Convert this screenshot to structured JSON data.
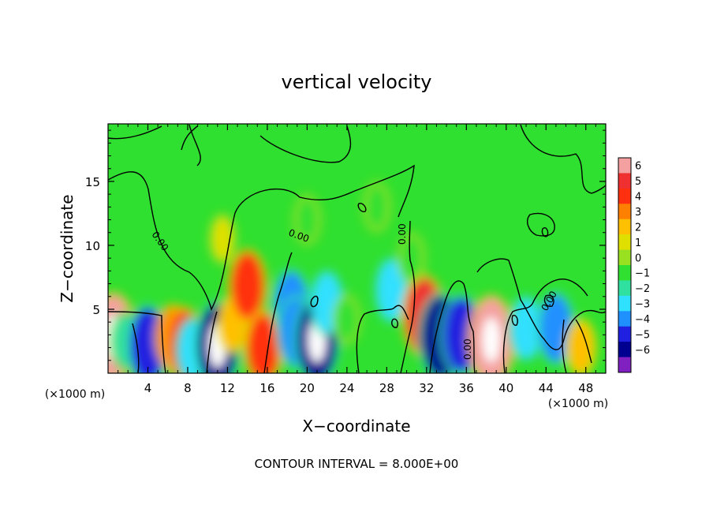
{
  "chart_data": {
    "type": "heatmap",
    "title": "vertical velocity",
    "xlabel": "X−coordinate",
    "ylabel": "Z−coordinate",
    "x_unit_left": "(×1000 m)",
    "x_unit_right": "(×1000 m)",
    "footer": "CONTOUR INTERVAL = 8.000E+00",
    "xlim": [
      0,
      50
    ],
    "ylim": [
      0,
      19.5
    ],
    "x_ticks": [
      4,
      8,
      12,
      16,
      20,
      24,
      28,
      32,
      36,
      40,
      44,
      48
    ],
    "x_tick_labels": [
      "4",
      "8",
      "12",
      "16",
      "20",
      "24",
      "28",
      "32",
      "36",
      "40",
      "44",
      "48"
    ],
    "y_ticks": [
      5,
      10,
      15
    ],
    "y_tick_labels": [
      "5",
      "10",
      "15"
    ],
    "colorbar": {
      "values": [
        6,
        5,
        4,
        3,
        2,
        1,
        0,
        -1,
        -2,
        -3,
        -4,
        -5,
        -6
      ],
      "labels": [
        "6",
        "5",
        "4",
        "3",
        "2",
        "1",
        "0",
        "−1",
        "−2",
        "−3",
        "−4",
        "−5",
        "−6"
      ],
      "colors": [
        "#f4a0a0",
        "#f03030",
        "#ff3010",
        "#ff8000",
        "#ffc000",
        "#e0e000",
        "#98e020",
        "#30e030",
        "#30e0a0",
        "#30e0ff",
        "#2090ff",
        "#2020e0",
        "#000090",
        "#8020c0"
      ]
    },
    "contour_labels": [
      "0.00",
      "0.00",
      "0.00",
      "0.00",
      "0.00"
    ],
    "cells": [
      {
        "x": 0.5,
        "z": 2.8,
        "w": 9
      },
      {
        "x": 1.8,
        "z": 2.5,
        "w": -2
      },
      {
        "x": 4.0,
        "z": 2.2,
        "w": -5
      },
      {
        "x": 6.5,
        "z": 2.8,
        "w": 3
      },
      {
        "x": 7.6,
        "z": 2.3,
        "w": 4
      },
      {
        "x": 8.5,
        "z": 1.8,
        "w": -3
      },
      {
        "x": 11.0,
        "z": 2.2,
        "w": -7
      },
      {
        "x": 12.5,
        "z": 3.8,
        "w": 2
      },
      {
        "x": 14.0,
        "z": 6.8,
        "w": 4
      },
      {
        "x": 15.6,
        "z": 2.0,
        "w": 4
      },
      {
        "x": 18.4,
        "z": 5.3,
        "w": -4
      },
      {
        "x": 18.9,
        "z": 3.2,
        "w": -4
      },
      {
        "x": 21.0,
        "z": 2.6,
        "w": -8
      },
      {
        "x": 22.0,
        "z": 5.5,
        "w": -3
      },
      {
        "x": 24.0,
        "z": 4.2,
        "w": -1
      },
      {
        "x": 28.5,
        "z": 6.5,
        "w": -3
      },
      {
        "x": 31.7,
        "z": 4.5,
        "w": 5
      },
      {
        "x": 33.5,
        "z": 2.8,
        "w": -6
      },
      {
        "x": 35.5,
        "z": 3.0,
        "w": -5
      },
      {
        "x": 38.5,
        "z": 2.6,
        "w": 9
      },
      {
        "x": 42.0,
        "z": 3.5,
        "w": -3
      },
      {
        "x": 45.0,
        "z": 3.5,
        "w": -4
      },
      {
        "x": 47.5,
        "z": 2.0,
        "w": 2
      },
      {
        "x": 20.0,
        "z": 12.0,
        "w": -1
      },
      {
        "x": 27.0,
        "z": 13.0,
        "w": -1
      },
      {
        "x": 11.5,
        "z": 10.5,
        "w": 1
      },
      {
        "x": 30.5,
        "z": 9.0,
        "w": -1
      }
    ]
  }
}
